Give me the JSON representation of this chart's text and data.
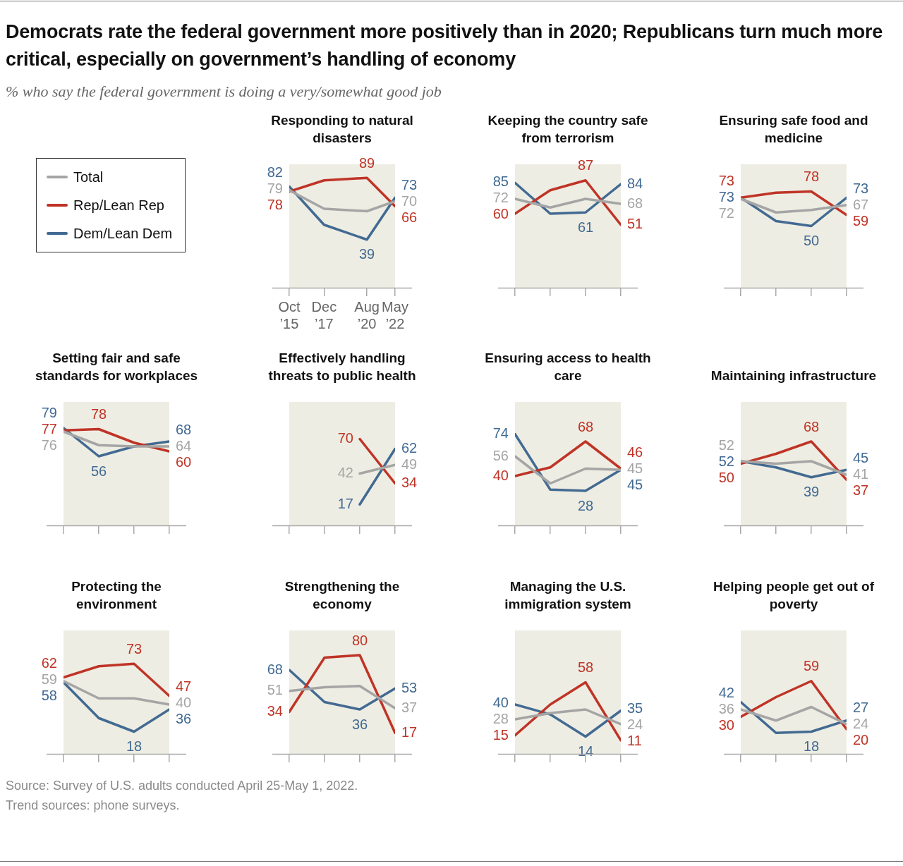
{
  "chart_data": [
    {
      "type": "other",
      "title": "Democrats rate the federal government more positively than in 2020; Republicans turn much more critical, especially on government’s handling of economy",
      "subtitle": "% who say the federal government is doing a very/somewhat good job",
      "annotations": [
        "Source: Survey of U.S. adults conducted April 25-May 1, 2022.",
        "Trend sources: phone surveys."
      ]
    },
    {
      "type": "line",
      "title": "Responding to natural disasters",
      "legend": "left",
      "tick_labels": "x",
      "x": [
        "2015-10",
        "2017-12",
        "2020-08",
        "2022-05"
      ],
      "xlim": [
        "2015-10",
        "2022-05"
      ],
      "xticks": [
        {
          "value": "2015-10",
          "label": "Oct ’15"
        },
        {
          "value": "2017-12",
          "label": "Dec ’17"
        },
        {
          "value": "2020-08",
          "label": "Aug ’20"
        },
        {
          "value": "2022-05",
          "label": "May ’22"
        }
      ],
      "ylim": [
        0,
        100
      ],
      "series": [
        {
          "name": "Total",
          "color": "#a5a5a5",
          "values": [
            79,
            64,
            62,
            70
          ],
          "value_labels": [
            "79",
            null,
            null,
            "70"
          ]
        },
        {
          "name": "Rep/Lean Rep",
          "color": "#bf3427",
          "values": [
            78,
            87,
            89,
            66
          ],
          "value_labels": [
            "78",
            null,
            "89",
            "66"
          ]
        },
        {
          "name": "Dem/Lean Dem",
          "color": "#426a92",
          "values": [
            82,
            51,
            39,
            73
          ],
          "value_labels": [
            "82",
            null,
            "39",
            "73"
          ]
        }
      ]
    },
    {
      "type": "line",
      "title": "Keeping the country safe from terrorism",
      "tick_labels": false,
      "categories": [
        null,
        null,
        null,
        null
      ],
      "ylim": [
        0,
        100
      ],
      "series": [
        {
          "color": "#a5a5a5",
          "values": [
            72,
            65,
            72,
            68
          ],
          "value_labels": [
            "72",
            null,
            null,
            "68"
          ]
        },
        {
          "color": "#bf3427",
          "values": [
            60,
            79,
            87,
            51
          ],
          "value_labels": [
            "60",
            null,
            "87",
            "51"
          ]
        },
        {
          "color": "#426a92",
          "values": [
            85,
            60,
            61,
            84
          ],
          "value_labels": [
            "85",
            null,
            "61",
            "84"
          ]
        }
      ]
    },
    {
      "type": "line",
      "title": "Ensuring safe food and medicine",
      "tick_labels": false,
      "categories": [
        null,
        null,
        null,
        null
      ],
      "ylim": [
        0,
        100
      ],
      "series": [
        {
          "color": "#a5a5a5",
          "values": [
            72,
            61,
            63,
            67
          ],
          "value_labels": [
            "72",
            null,
            null,
            "67"
          ]
        },
        {
          "color": "#bf3427",
          "values": [
            73,
            77,
            78,
            59
          ],
          "value_labels": [
            "73",
            null,
            "78",
            "59"
          ]
        },
        {
          "color": "#426a92",
          "values": [
            73,
            54,
            50,
            73
          ],
          "value_labels": [
            "73",
            null,
            "50",
            "73"
          ]
        }
      ]
    },
    {
      "type": "line",
      "title": "Setting fair and safe standards for workplaces",
      "tick_labels": false,
      "categories": [
        null,
        null,
        null,
        null
      ],
      "ylim": [
        0,
        100
      ],
      "series": [
        {
          "color": "#a5a5a5",
          "values": [
            76,
            65,
            64,
            64
          ],
          "value_labels": [
            "76",
            null,
            null,
            "64"
          ]
        },
        {
          "color": "#bf3427",
          "values": [
            77,
            78,
            67,
            60
          ],
          "value_labels": [
            "77",
            "78",
            null,
            "60"
          ]
        },
        {
          "color": "#426a92",
          "values": [
            79,
            56,
            64,
            68
          ],
          "value_labels": [
            "79",
            "56",
            null,
            "68"
          ]
        }
      ]
    },
    {
      "type": "line",
      "title": "Effectively handling threats to public health",
      "tick_labels": false,
      "categories": [
        null,
        null,
        null,
        null
      ],
      "ylim": [
        0,
        100
      ],
      "series": [
        {
          "color": "#a5a5a5",
          "values": [
            null,
            null,
            42,
            49
          ],
          "value_labels": [
            null,
            null,
            "42",
            "49"
          ]
        },
        {
          "color": "#bf3427",
          "values": [
            null,
            null,
            70,
            34
          ],
          "value_labels": [
            null,
            null,
            "70",
            "34"
          ]
        },
        {
          "color": "#426a92",
          "values": [
            null,
            null,
            17,
            62
          ],
          "value_labels": [
            null,
            null,
            "17",
            "62"
          ]
        }
      ]
    },
    {
      "type": "line",
      "title": "Ensuring access to health care",
      "tick_labels": false,
      "categories": [
        null,
        null,
        null,
        null
      ],
      "ylim": [
        0,
        100
      ],
      "series": [
        {
          "color": "#a5a5a5",
          "values": [
            56,
            34,
            46,
            45
          ],
          "value_labels": [
            "56",
            null,
            null,
            "45"
          ]
        },
        {
          "color": "#bf3427",
          "values": [
            40,
            47,
            68,
            46
          ],
          "value_labels": [
            "40",
            null,
            "68",
            "46"
          ]
        },
        {
          "color": "#426a92",
          "values": [
            74,
            29,
            28,
            45
          ],
          "value_labels": [
            "74",
            null,
            "28",
            "45"
          ]
        }
      ]
    },
    {
      "type": "line",
      "title": "Maintaining infrastructure",
      "tick_labels": false,
      "categories": [
        null,
        null,
        null,
        null
      ],
      "ylim": [
        0,
        100
      ],
      "series": [
        {
          "color": "#a5a5a5",
          "values": [
            52,
            50,
            52,
            41
          ],
          "value_labels": [
            "52",
            null,
            null,
            "41"
          ]
        },
        {
          "color": "#bf3427",
          "values": [
            50,
            58,
            68,
            37
          ],
          "value_labels": [
            "50",
            null,
            "68",
            "37"
          ]
        },
        {
          "color": "#426a92",
          "values": [
            52,
            47,
            39,
            45
          ],
          "value_labels": [
            "52",
            null,
            "39",
            "45"
          ]
        }
      ]
    },
    {
      "type": "line",
      "title": "Protecting the environment",
      "tick_labels": false,
      "categories": [
        null,
        null,
        null,
        null
      ],
      "ylim": [
        0,
        100
      ],
      "series": [
        {
          "color": "#a5a5a5",
          "values": [
            59,
            45,
            45,
            40
          ],
          "value_labels": [
            "59",
            null,
            null,
            "40"
          ]
        },
        {
          "color": "#bf3427",
          "values": [
            62,
            71,
            73,
            47
          ],
          "value_labels": [
            "62",
            null,
            "73",
            "47"
          ]
        },
        {
          "color": "#426a92",
          "values": [
            58,
            29,
            18,
            36
          ],
          "value_labels": [
            "58",
            null,
            "18",
            "36"
          ]
        }
      ]
    },
    {
      "type": "line",
      "title": "Strengthening the economy",
      "tick_labels": false,
      "categories": [
        null,
        null,
        null,
        null
      ],
      "ylim": [
        0,
        100
      ],
      "series": [
        {
          "color": "#a5a5a5",
          "values": [
            51,
            54,
            55,
            37
          ],
          "value_labels": [
            "51",
            null,
            null,
            "37"
          ]
        },
        {
          "color": "#bf3427",
          "values": [
            34,
            78,
            80,
            17
          ],
          "value_labels": [
            "34",
            null,
            "80",
            "17"
          ]
        },
        {
          "color": "#426a92",
          "values": [
            68,
            42,
            36,
            53
          ],
          "value_labels": [
            "68",
            null,
            "36",
            "53"
          ]
        }
      ]
    },
    {
      "type": "line",
      "title": "Managing the U.S. immigration system",
      "tick_labels": false,
      "categories": [
        null,
        null,
        null,
        null
      ],
      "ylim": [
        0,
        100
      ],
      "series": [
        {
          "color": "#a5a5a5",
          "values": [
            28,
            33,
            36,
            24
          ],
          "value_labels": [
            "28",
            null,
            null,
            "24"
          ]
        },
        {
          "color": "#bf3427",
          "values": [
            15,
            40,
            58,
            11
          ],
          "value_labels": [
            "15",
            null,
            "58",
            "11"
          ]
        },
        {
          "color": "#426a92",
          "values": [
            40,
            32,
            14,
            35
          ],
          "value_labels": [
            "40",
            null,
            "14",
            "35"
          ]
        }
      ]
    },
    {
      "type": "line",
      "title": "Helping people get out of poverty",
      "tick_labels": false,
      "categories": [
        null,
        null,
        null,
        null
      ],
      "ylim": [
        0,
        100
      ],
      "series": [
        {
          "color": "#a5a5a5",
          "values": [
            36,
            27,
            38,
            24
          ],
          "value_labels": [
            "36",
            null,
            null,
            "24"
          ]
        },
        {
          "color": "#bf3427",
          "values": [
            30,
            46,
            59,
            20
          ],
          "value_labels": [
            "30",
            null,
            "59",
            "20"
          ]
        },
        {
          "color": "#426a92",
          "values": [
            42,
            17,
            18,
            27
          ],
          "value_labels": [
            "42",
            null,
            "18",
            "27"
          ]
        }
      ]
    }
  ]
}
